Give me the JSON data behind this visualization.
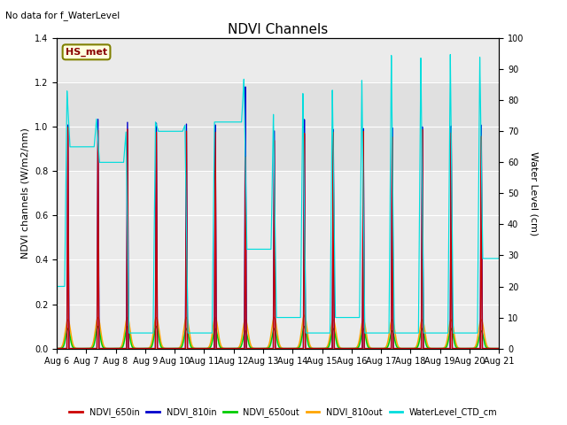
{
  "title": "NDVI Channels",
  "ylabel_left": "NDVI channels (W/m2/nm)",
  "ylabel_right": "Water Level (cm)",
  "annotation": "No data for f_WaterLevel",
  "text_box": "HS_met",
  "ylim_left": [
    0,
    1.4
  ],
  "ylim_right": [
    0,
    100
  ],
  "colors": {
    "NDVI_650in": "#cc0000",
    "NDVI_810in": "#0000cc",
    "NDVI_650out": "#00cc00",
    "NDVI_810out": "#ffa500",
    "WaterLevel_CTD_cm": "#00dddd"
  },
  "n_days": 15,
  "water_peaks": [
    83,
    74,
    70,
    73,
    72,
    73,
    87,
    76,
    83,
    84,
    87,
    95,
    94,
    95,
    94
  ],
  "water_pre": [
    20,
    65,
    60,
    5,
    70,
    5,
    73,
    32,
    10,
    5,
    10,
    5,
    5,
    5,
    5
  ],
  "water_post": [
    65,
    60,
    5,
    70,
    5,
    73,
    32,
    10,
    5,
    10,
    5,
    5,
    5,
    5,
    29
  ],
  "ndvi810_peaks": [
    1.01,
    1.04,
    1.03,
    1.03,
    1.03,
    1.03,
    1.21,
    1.01,
    1.06,
    1.01,
    1.01,
    1.01,
    1.01,
    1.01,
    1.01
  ],
  "ndvi650_peaks": [
    1.0,
    0.99,
    1.0,
    0.99,
    1.0,
    1.0,
    0.89,
    0.97,
    1.0,
    1.0,
    1.0,
    0.97,
    1.0,
    0.98,
    0.96
  ],
  "ndvi810out_peaks": [
    0.13,
    0.14,
    0.14,
    0.14,
    0.14,
    0.14,
    0.13,
    0.14,
    0.15,
    0.13,
    0.13,
    0.13,
    0.13,
    0.13,
    0.13
  ],
  "ndvi650out_peaks": [
    0.09,
    0.1,
    0.1,
    0.1,
    0.09,
    0.09,
    0.08,
    0.09,
    0.1,
    0.09,
    0.09,
    0.08,
    0.09,
    0.09,
    0.08
  ],
  "tick_labels": [
    "Aug 6",
    "Aug 7",
    "Aug 8",
    "Aug 9",
    "Aug 10",
    "Aug 11",
    "Aug 12",
    "Aug 13",
    "Aug 14",
    "Aug 15",
    "Aug 16",
    "Aug 17",
    "Aug 18",
    "Aug 19",
    "Aug 20",
    "Aug 21"
  ],
  "gray_band": [
    0.8,
    1.2
  ],
  "gray_color": "#e0e0e0",
  "bg_color": "#ebebeb"
}
